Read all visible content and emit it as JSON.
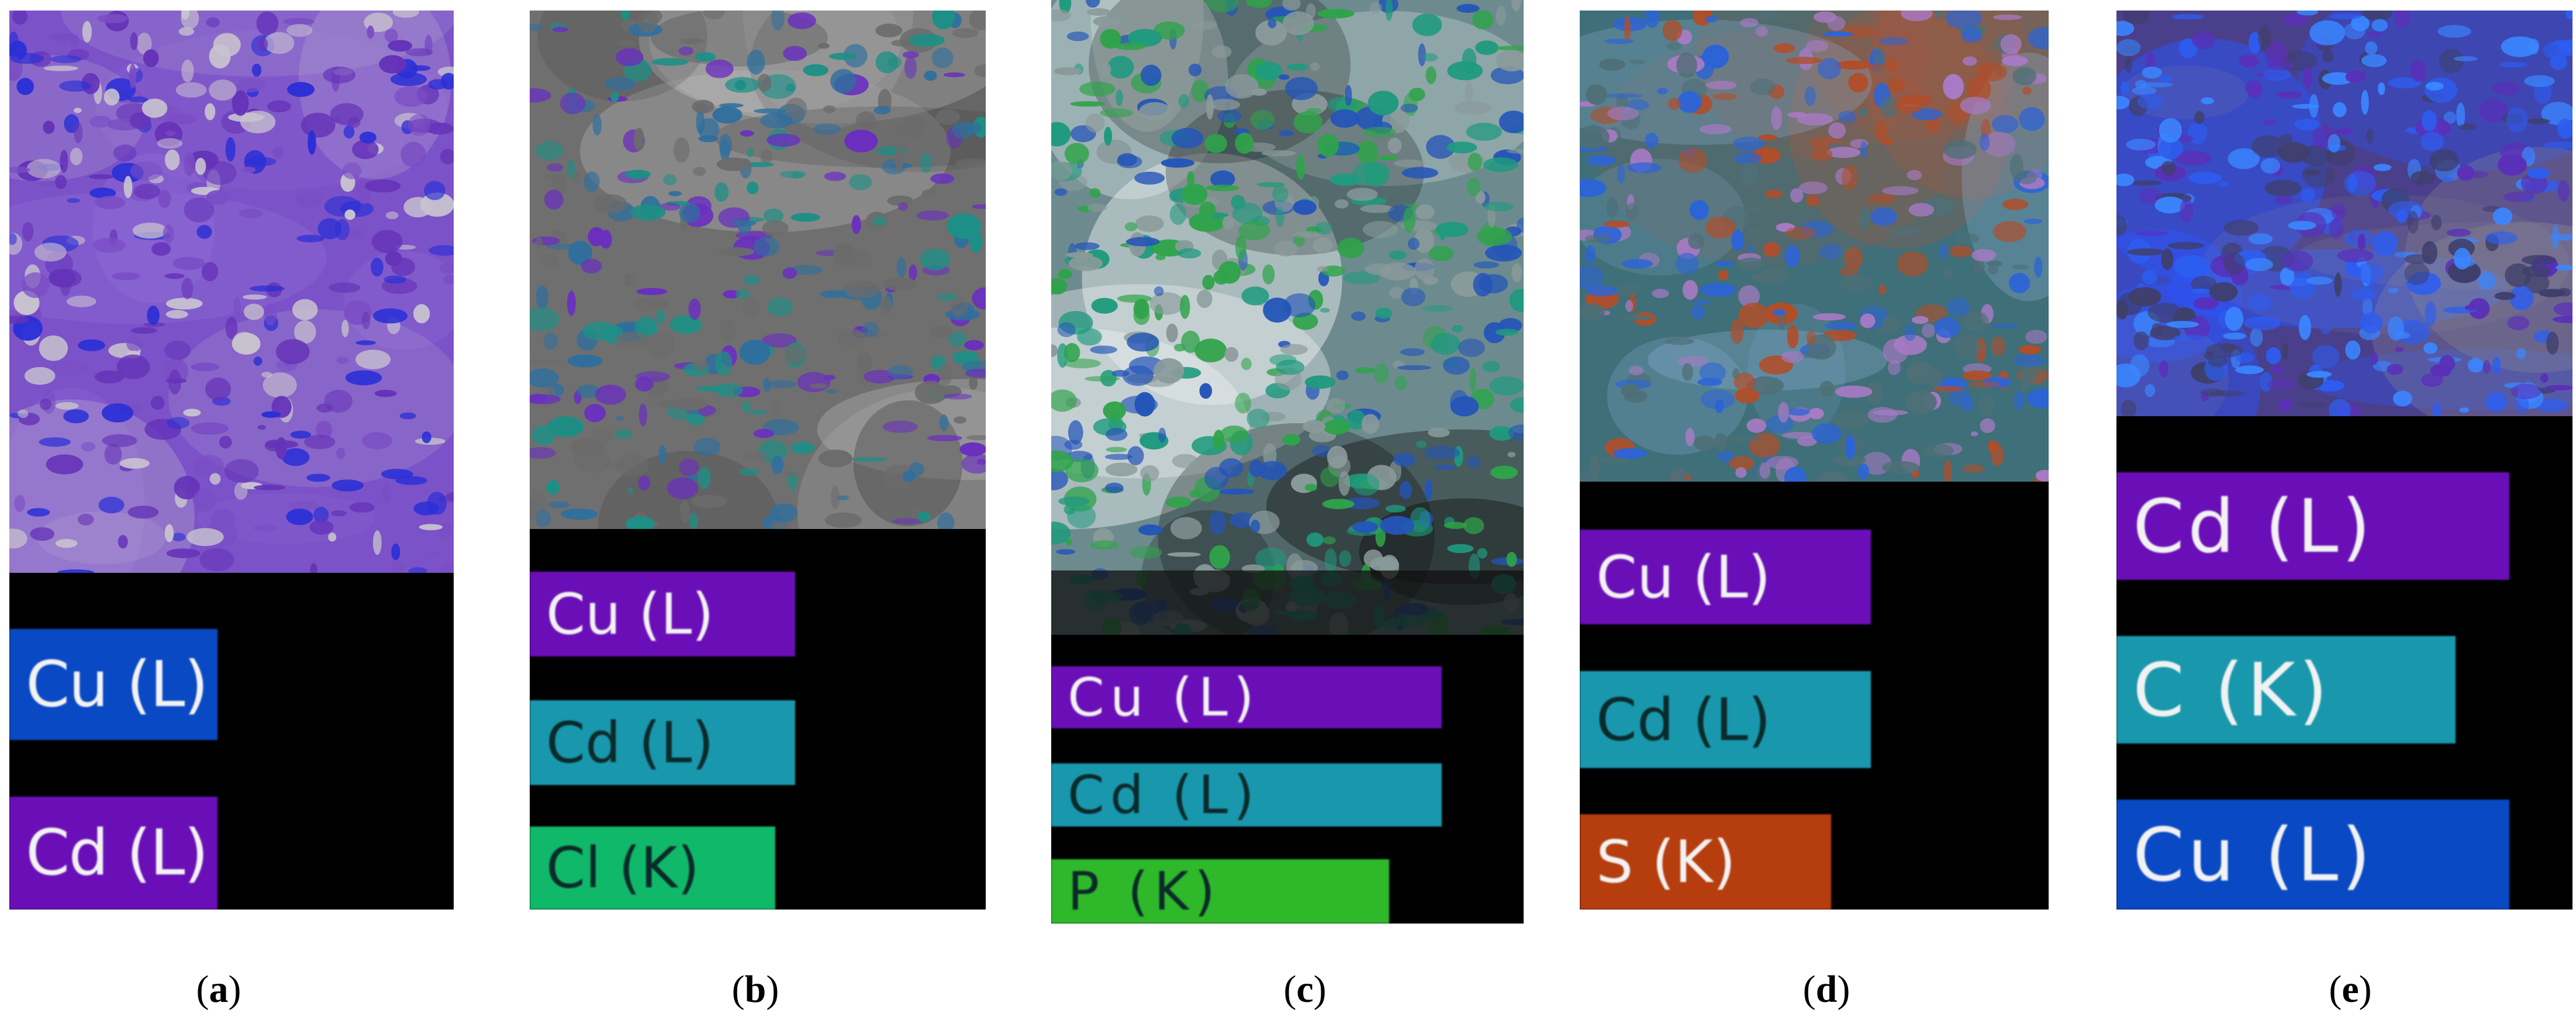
{
  "colors": {
    "background": "#ffffff",
    "panel_black": "#000000",
    "violet": "#6a0fb8",
    "cyan": "#1897ad",
    "green": "#10b86a",
    "lime": "#2fb82a",
    "blue": "#0a49c4",
    "rust": "#b63d0d",
    "label_text_light": "#f2f2f2",
    "label_text_dark": "#0b2a2a"
  },
  "panels": [
    {
      "id": "a",
      "caption_open": "(",
      "caption_letter": "a",
      "caption_close": ")",
      "map_palette": [
        "#7a4dc4",
        "#6533b8",
        "#c8c2cf",
        "#2a2fd6"
      ],
      "labels": [
        {
          "text": "Cu (L)",
          "color": "#0a49c4"
        },
        {
          "text": "Cd (L)",
          "color": "#6a0fb8"
        }
      ]
    },
    {
      "id": "b",
      "caption_open": "(",
      "caption_letter": "b",
      "caption_close": ")",
      "map_palette": [
        "#6b6b6b",
        "#1d8f86",
        "#2f6f9e",
        "#6a2fbf"
      ],
      "labels": [
        {
          "text": "Cu (L)",
          "color": "#6a0fb8"
        },
        {
          "text": "Cd (L)",
          "color": "#1897ad"
        },
        {
          "text": "Cl (K)",
          "color": "#10b86a"
        }
      ]
    },
    {
      "id": "c",
      "caption_open": "(",
      "caption_letter": "c",
      "caption_close": ")",
      "map_palette": [
        "#8a9a9a",
        "#1f9a7e",
        "#2455b8",
        "#2fa34a"
      ],
      "labels": [
        {
          "text": "Cu (L)",
          "color": "#6a0fb8"
        },
        {
          "text": "Cd (L)",
          "color": "#1897ad"
        },
        {
          "text": "P (K)",
          "color": "#2fb82a"
        }
      ]
    },
    {
      "id": "d",
      "caption_open": "(",
      "caption_letter": "d",
      "caption_close": ")",
      "map_palette": [
        "#4f6f76",
        "#b04e2a",
        "#a77ac4",
        "#2d64d6"
      ],
      "labels": [
        {
          "text": "Cu (L)",
          "color": "#6a0fb8"
        },
        {
          "text": "Cd (L)",
          "color": "#1897ad"
        },
        {
          "text": "S (K)",
          "color": "#b63d0d"
        }
      ]
    },
    {
      "id": "e",
      "caption_open": "(",
      "caption_letter": "e",
      "caption_close": ")",
      "map_palette": [
        "#3f3f6b",
        "#5a2fb8",
        "#2d5df0",
        "#3a86ff"
      ],
      "labels": [
        {
          "text": "Cd (L)",
          "color": "#6a0fb8"
        },
        {
          "text": "C (K)",
          "color": "#1897ad"
        },
        {
          "text": "Cu (L)",
          "color": "#0a49c4"
        }
      ]
    }
  ]
}
